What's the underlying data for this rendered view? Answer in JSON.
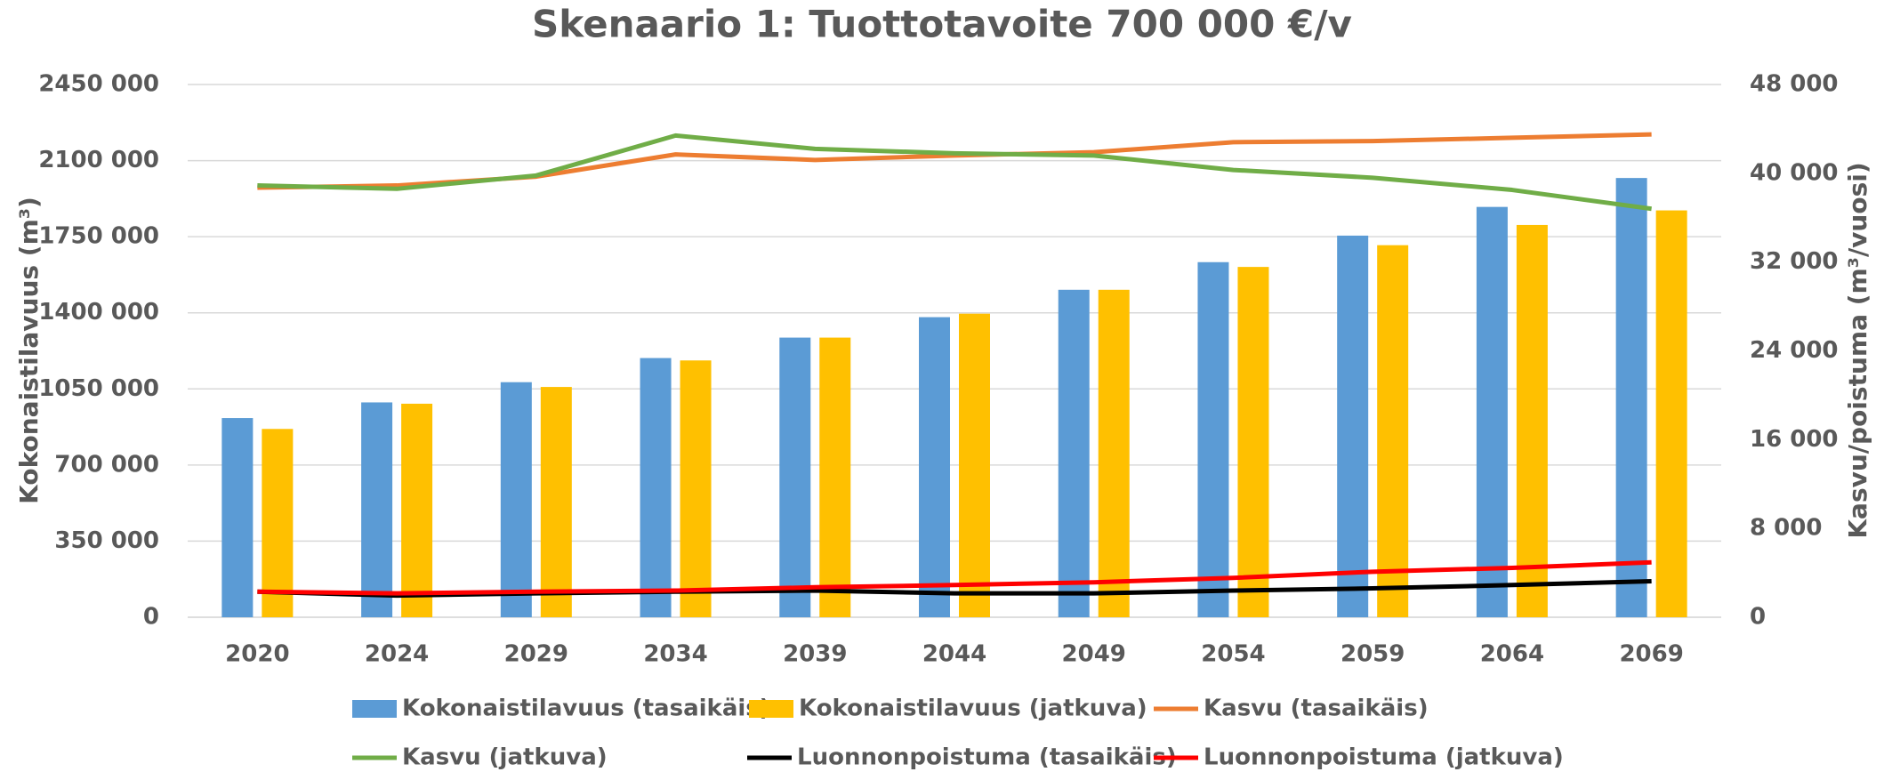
{
  "chart_data": {
    "type": "bar",
    "title": "Skenaario 1: Tuottotavoite 700 000 €/v",
    "y_label": "Kokonaistilavuus (m³)",
    "y2_label": "Kasvu/poistuma (m³/vuosi)",
    "categories": [
      "2020",
      "2024",
      "2029",
      "2034",
      "2039",
      "2044",
      "2049",
      "2054",
      "2059",
      "2064",
      "2069"
    ],
    "ylim": [
      0,
      2450000
    ],
    "yticks": [
      0,
      {
        "value": 350000,
        "label": "350 000"
      },
      {
        "value": 700000,
        "label": "700 000"
      },
      {
        "value": 1050000,
        "label": "1050 000"
      },
      {
        "value": 1400000,
        "label": "1400 000"
      },
      {
        "value": 1750000,
        "label": "1750 000"
      },
      {
        "value": 2100000,
        "label": "2100 000"
      },
      {
        "value": 2450000,
        "label": "2450 000"
      }
    ],
    "y2lim": [
      0,
      48000
    ],
    "y2ticks": [
      0,
      {
        "value": 8000,
        "label": "8 000"
      },
      {
        "value": 16000,
        "label": "16 000"
      },
      {
        "value": 24000,
        "label": "24 000"
      },
      {
        "value": 32000,
        "label": "32 000"
      },
      {
        "value": 40000,
        "label": "40 000"
      },
      {
        "value": 48000,
        "label": "48 000"
      }
    ],
    "grid": true,
    "legend": "bottom",
    "series": [
      {
        "name": "Kokonaistilavuus (tasaikäis)",
        "type": "bar",
        "color": "#5b9bd5",
        "values": [
          916000,
          988000,
          1081000,
          1192000,
          1286000,
          1380000,
          1506000,
          1633000,
          1755000,
          1887000,
          2020000
        ]
      },
      {
        "name": "Kokonaistilavuus (jatkuva)",
        "type": "bar",
        "color": "#ffc000",
        "values": [
          866000,
          982000,
          1059000,
          1181000,
          1286000,
          1396000,
          1506000,
          1611000,
          1711000,
          1804000,
          1871000
        ]
      },
      {
        "name": "Kasvu (tasaikäis)",
        "type": "line",
        "axis": "y2",
        "color": "#ed7d31",
        "values": [
          38700,
          38900,
          39700,
          41700,
          41200,
          41600,
          41900,
          42800,
          42900,
          43200,
          43500
        ]
      },
      {
        "name": "Kasvu (jatkuva)",
        "type": "line",
        "axis": "y2",
        "color": "#70ad47",
        "values": [
          38900,
          38600,
          39800,
          43400,
          42200,
          41800,
          41600,
          40300,
          39600,
          38500,
          36800
        ]
      },
      {
        "name": "Luonnonpoistuma (tasaikäis)",
        "type": "line",
        "axis": "y2",
        "color": "#000000",
        "values": [
          2300,
          1950,
          2150,
          2300,
          2400,
          2150,
          2150,
          2400,
          2600,
          2900,
          3250
        ]
      },
      {
        "name": "Luonnonpoistuma (jatkuva)",
        "type": "line",
        "axis": "y2",
        "color": "#ff0000",
        "values": [
          2300,
          2150,
          2300,
          2400,
          2700,
          2900,
          3150,
          3550,
          4100,
          4450,
          4950
        ]
      }
    ]
  }
}
